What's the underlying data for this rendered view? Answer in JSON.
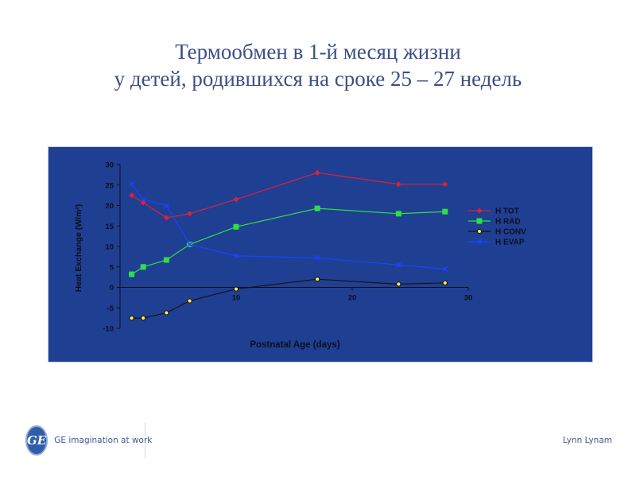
{
  "slide": {
    "title_line1": "Термообмен в 1-й месяц жизни",
    "title_line2": "у детей, родившихся на сроке 25 – 27 недель",
    "logo_text": "GE imagination at work",
    "author": "Lynn Lynam"
  },
  "colors": {
    "panel_bg": "#1f3f92",
    "axis": "#0b0f1e",
    "h_tot": "#d9223b",
    "h_rad": "#2ee045",
    "h_conv": "#151515",
    "h_evap": "#1f41ff",
    "conv_marker_fill": "#ffee55"
  },
  "chart_data": {
    "type": "line",
    "xlabel": "Postnatal Age (days)",
    "ylabel": "Heat Exchange (W/m²)",
    "xlim": [
      0,
      30
    ],
    "ylim": [
      -10,
      30
    ],
    "x_ticks": [
      10,
      20,
      30
    ],
    "y_ticks": [
      30,
      25,
      20,
      15,
      10,
      5,
      0,
      -5,
      -10
    ],
    "x_tick_labels": [
      "10",
      "20",
      "30"
    ],
    "y_tick_labels": [
      "30",
      "25",
      "20",
      "15",
      "10",
      "5",
      "0",
      "-5",
      "-10"
    ],
    "legend_position": "right",
    "grid": false,
    "series": [
      {
        "name": "H TOT",
        "color_key": "h_tot",
        "marker": "diamond",
        "x": [
          1,
          2,
          4,
          6,
          10,
          17,
          24,
          28
        ],
        "y": [
          22.5,
          20.7,
          17,
          18,
          21.5,
          28,
          25.2,
          25.2
        ]
      },
      {
        "name": "H RAD",
        "color_key": "h_rad",
        "marker": "square",
        "x": [
          1,
          2,
          4,
          6,
          10,
          17,
          24,
          28
        ],
        "y": [
          3.2,
          5,
          6.7,
          10.5,
          14.8,
          19.3,
          18,
          18.5
        ]
      },
      {
        "name": "H CONV",
        "color_key": "h_conv",
        "marker": "circle",
        "x": [
          1,
          2,
          4,
          6,
          10,
          17,
          24,
          28
        ],
        "y": [
          -7.5,
          -7.5,
          -6.2,
          -3.3,
          -0.4,
          2,
          0.8,
          1.1
        ]
      },
      {
        "name": "H EVAP",
        "color_key": "h_evap",
        "marker": "x",
        "x": [
          1,
          2,
          4,
          6,
          10,
          17,
          24,
          28
        ],
        "y": [
          25.3,
          21.5,
          20,
          10.5,
          7.7,
          7.2,
          5.5,
          4.5
        ]
      }
    ]
  }
}
